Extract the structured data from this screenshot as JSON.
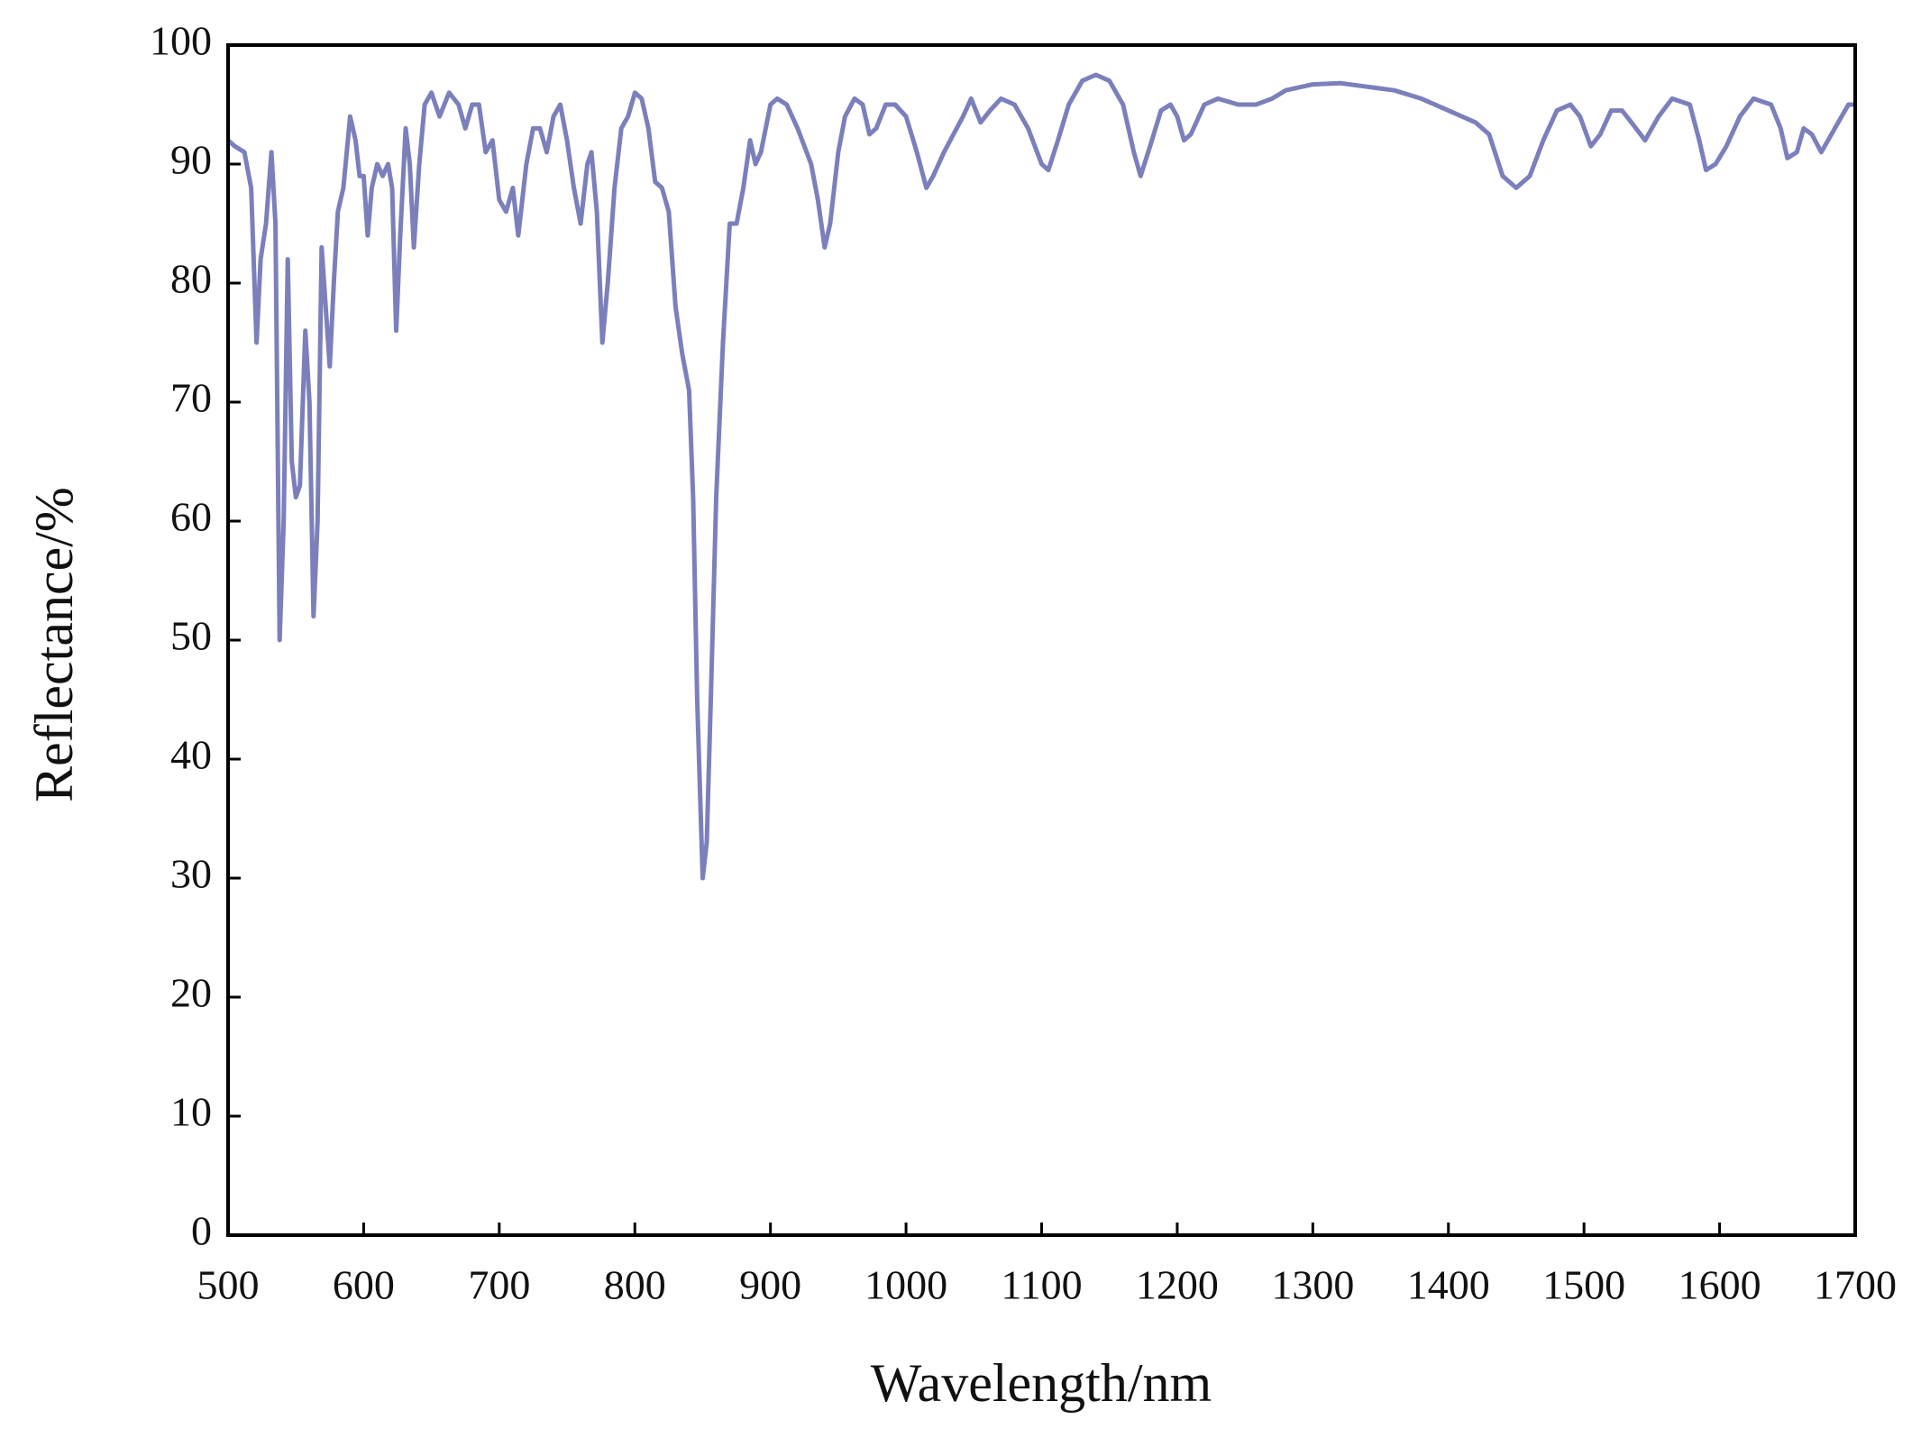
{
  "chart_data": {
    "type": "line",
    "xlabel": "Wavelength/nm",
    "ylabel": "Reflectance/%",
    "x": [
      500,
      505,
      512,
      517,
      521,
      524,
      528,
      532,
      535,
      538,
      541,
      544,
      547,
      550,
      553,
      557,
      560,
      563,
      566,
      569,
      572,
      575,
      578,
      581,
      585,
      590,
      594,
      597,
      600,
      603,
      606,
      610,
      614,
      618,
      621,
      624,
      627,
      631,
      634,
      637,
      641,
      645,
      650,
      656,
      663,
      670,
      675,
      680,
      685,
      690,
      695,
      700,
      705,
      710,
      714,
      720,
      725,
      730,
      735,
      740,
      745,
      750,
      755,
      760,
      765,
      768,
      772,
      776,
      780,
      785,
      790,
      795,
      800,
      805,
      810,
      815,
      820,
      825,
      830,
      835,
      840,
      843,
      846,
      850,
      853,
      856,
      860,
      865,
      870,
      875,
      880,
      885,
      889,
      893,
      900,
      905,
      912,
      920,
      930,
      935,
      940,
      944,
      950,
      955,
      962,
      968,
      973,
      978,
      985,
      992,
      1000,
      1008,
      1015,
      1020,
      1028,
      1035,
      1042,
      1048,
      1055,
      1062,
      1070,
      1080,
      1090,
      1100,
      1105,
      1112,
      1120,
      1130,
      1140,
      1150,
      1160,
      1168,
      1173,
      1180,
      1188,
      1195,
      1200,
      1205,
      1210,
      1220,
      1230,
      1245,
      1258,
      1270,
      1280,
      1300,
      1320,
      1340,
      1360,
      1380,
      1400,
      1420,
      1430,
      1440,
      1450,
      1460,
      1470,
      1480,
      1490,
      1497,
      1505,
      1512,
      1520,
      1528,
      1535,
      1545,
      1555,
      1565,
      1578,
      1585,
      1590,
      1597,
      1605,
      1615,
      1625,
      1638,
      1645,
      1650,
      1657,
      1662,
      1668,
      1675,
      1685,
      1695,
      1700
    ],
    "values": [
      92,
      91.5,
      91,
      88,
      75,
      82,
      85,
      91,
      85,
      50,
      60,
      82,
      65,
      62,
      63,
      76,
      70,
      52,
      60,
      83,
      78,
      73,
      80,
      86,
      88,
      94,
      92,
      89,
      89,
      84,
      88,
      90,
      89,
      90,
      88,
      76,
      84,
      93,
      90,
      83,
      90,
      95,
      96,
      94,
      96,
      95,
      93,
      95,
      95,
      91,
      92,
      87,
      86,
      88,
      84,
      90,
      93,
      93,
      91,
      94,
      95,
      92,
      88,
      85,
      90,
      91,
      86,
      75,
      80,
      88,
      93,
      94,
      96,
      95.5,
      93,
      88.5,
      88,
      86,
      78,
      74,
      71,
      62,
      45,
      30,
      33,
      45,
      62,
      75,
      85,
      85,
      88,
      92,
      90,
      91,
      95,
      95.5,
      95,
      93,
      90,
      87,
      83,
      85,
      91,
      94,
      95.5,
      95,
      92.5,
      93,
      95,
      95,
      94,
      91,
      88,
      89,
      91,
      92.5,
      94,
      95.5,
      93.5,
      94.5,
      95.5,
      95,
      93,
      90,
      89.5,
      92,
      95,
      97,
      97.5,
      97,
      95,
      91,
      89,
      91.5,
      94.5,
      95,
      94,
      92,
      92.5,
      95,
      95.5,
      95,
      95,
      95.5,
      96.2,
      96.7,
      96.8,
      96.5,
      96.2,
      95.5,
      94.5,
      93.5,
      92.5,
      89,
      88,
      89,
      92,
      94.5,
      95,
      94,
      91.5,
      92.5,
      94.5,
      94.5,
      93.5,
      92,
      94,
      95.5,
      95,
      92,
      89.5,
      90,
      91.5,
      94,
      95.5,
      95,
      93,
      90.5,
      91,
      93,
      92.5,
      91,
      93,
      95,
      95
    ],
    "color": "#7b7fbb",
    "xlim": [
      500,
      1700
    ],
    "xticks": [
      500,
      600,
      700,
      800,
      900,
      1000,
      1100,
      1200,
      1300,
      1400,
      1500,
      1600,
      1700
    ],
    "ylim": [
      0,
      100
    ],
    "yticks": [
      0,
      10,
      20,
      30,
      40,
      50,
      60,
      70,
      80,
      90,
      100
    ]
  }
}
